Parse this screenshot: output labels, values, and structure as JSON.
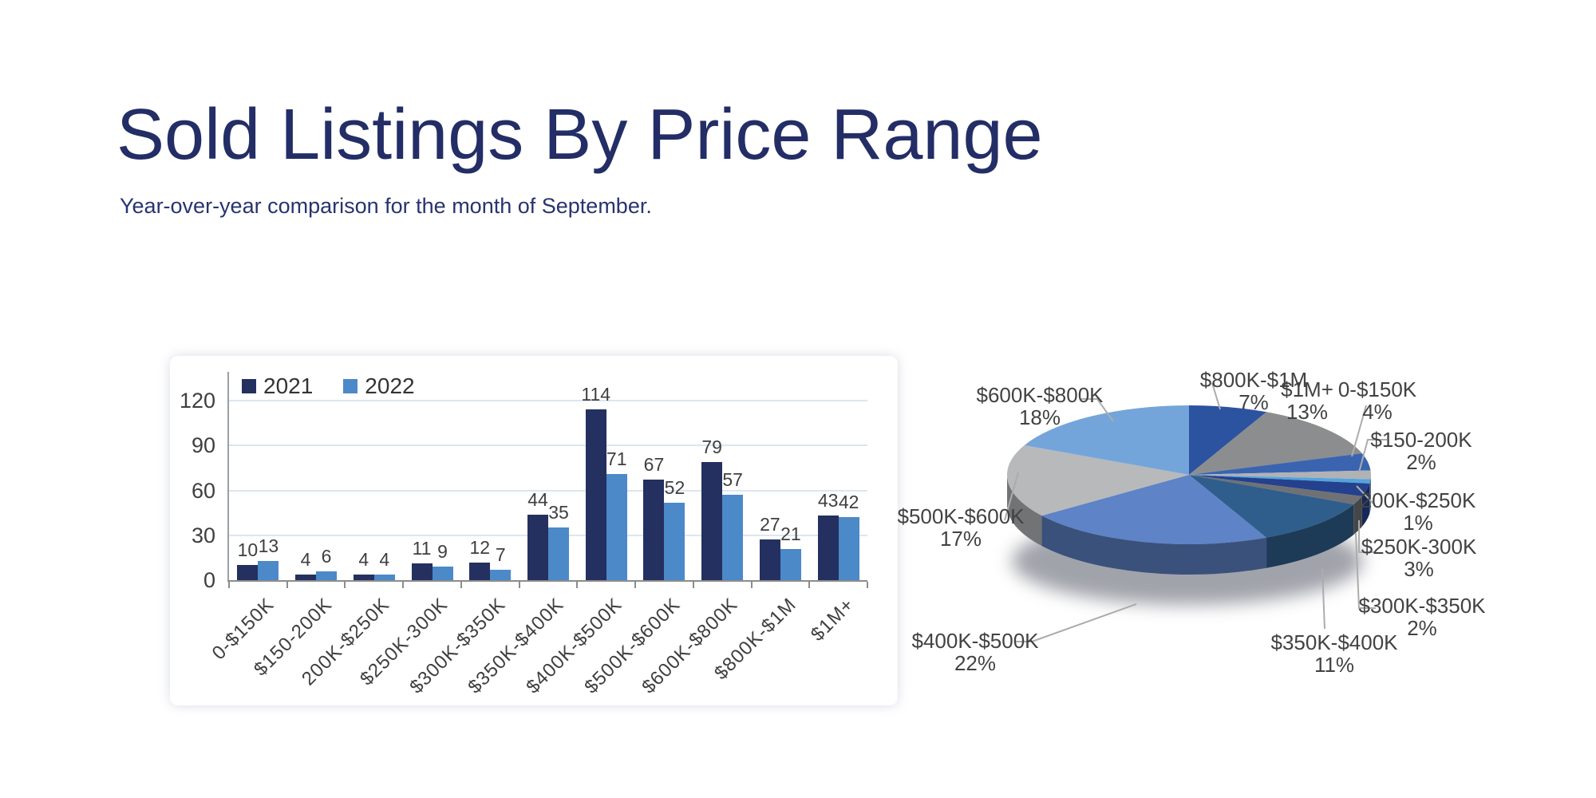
{
  "slide": {
    "title": "Sold Listings By Price Range",
    "subtitle": "Year-over-year comparison for the month of September."
  },
  "colors": {
    "title_text": "#232D66",
    "axis_text": "#3E3E3E",
    "value_label_text": "#3F3F3F",
    "gridline": "#DCE6F1",
    "y_axis_line": "#9BA0A6",
    "x_axis_line": "#8C8C8C",
    "leader_line": "#ACACAC",
    "bar_2021": "#24305F",
    "bar_2022": "#4C89C8"
  },
  "chart_data": [
    {
      "type": "bar",
      "title": "",
      "xlabel": "",
      "ylabel": "",
      "categories": [
        "0-$150K",
        "$150-200K",
        "200K-$250K",
        "$250K-300K",
        "$300K-$350K",
        "$350K-$400K",
        "$400K-$500K",
        "$500K-$600K",
        "$600K-$800K",
        "$800K-$1M",
        "$1M+"
      ],
      "series": [
        {
          "name": "2021",
          "color": "#24305F",
          "values": [
            10,
            4,
            4,
            11,
            12,
            44,
            114,
            67,
            79,
            27,
            43
          ]
        },
        {
          "name": "2022",
          "color": "#4C89C8",
          "values": [
            13,
            6,
            4,
            9,
            7,
            35,
            71,
            52,
            57,
            21,
            42
          ]
        }
      ],
      "ylim": [
        0,
        120
      ],
      "yticks": [
        0,
        30,
        60,
        90,
        120
      ],
      "grid": true,
      "legend_position": "top-left",
      "value_labels": true
    },
    {
      "type": "pie",
      "style": "3d",
      "start_angle_deg": 0,
      "direction": "clockwise",
      "label_format": "label + percent",
      "slices": [
        {
          "label": "$800K-$1M",
          "pct": 7,
          "color": "#2C53A0"
        },
        {
          "label": "$1M+",
          "pct": 13,
          "color": "#8C8D8F"
        },
        {
          "label": "0-$150K",
          "pct": 4,
          "color": "#3A64B0"
        },
        {
          "label": "$150-200K",
          "pct": 2,
          "color": "#B0B2B5"
        },
        {
          "label": "200K-$250K",
          "pct": 1,
          "color": "#54A3DC"
        },
        {
          "label": "$250K-300K",
          "pct": 3,
          "color": "#24418D"
        },
        {
          "label": "$300K-$350K",
          "pct": 2,
          "color": "#6F7174"
        },
        {
          "label": "$350K-$400K",
          "pct": 11,
          "color": "#2F5E8C"
        },
        {
          "label": "$400K-$500K",
          "pct": 22,
          "color": "#5E83C6"
        },
        {
          "label": "$500K-$600K",
          "pct": 17,
          "color": "#B7B9BB"
        },
        {
          "label": "$600K-$800K",
          "pct": 18,
          "color": "#74A5DA"
        }
      ]
    }
  ]
}
